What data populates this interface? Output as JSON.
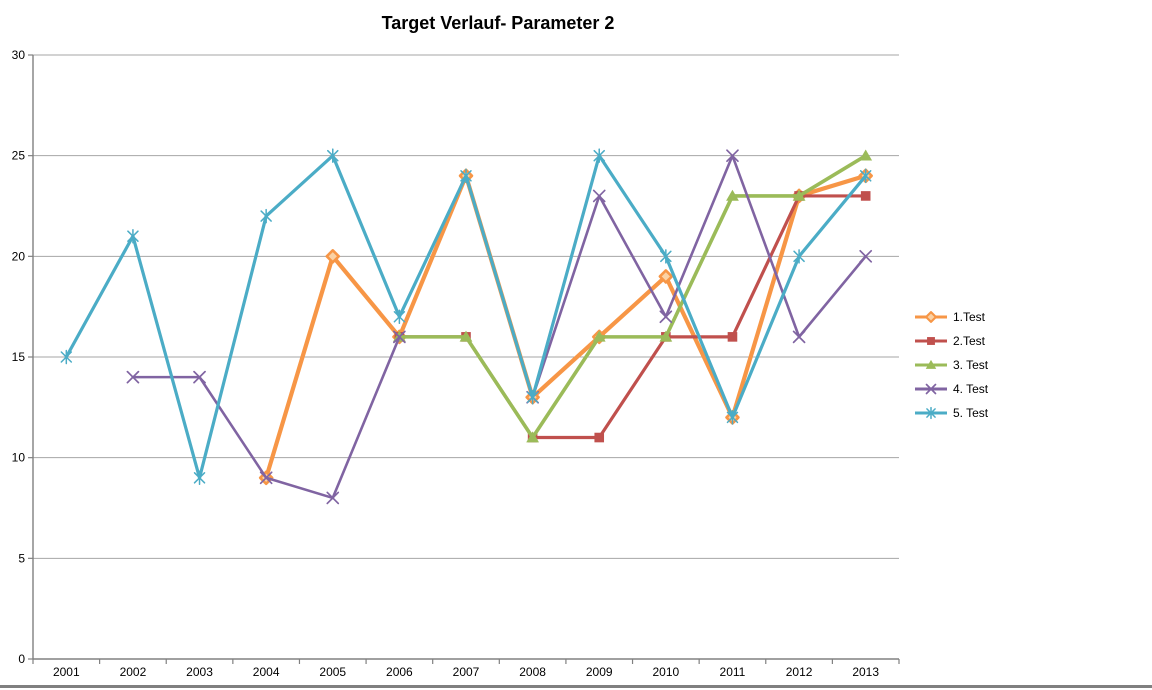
{
  "chart_data": {
    "type": "line",
    "title": "Target Verlauf- Parameter 2",
    "xlabel": "",
    "ylabel": "",
    "categories": [
      "2001",
      "2002",
      "2003",
      "2004",
      "2005",
      "2006",
      "2007",
      "2008",
      "2009",
      "2010",
      "2011",
      "2012",
      "2013"
    ],
    "y_ticks": [
      0,
      5,
      10,
      15,
      20,
      25,
      30
    ],
    "ylim": [
      0,
      30
    ],
    "grid": true,
    "legend_position": "right",
    "series": [
      {
        "name": "1.Test",
        "color": "#F79646",
        "marker": "diamond",
        "values": [
          null,
          null,
          null,
          9,
          20,
          16,
          24,
          13,
          16,
          19,
          12,
          23,
          24
        ]
      },
      {
        "name": "2.Test",
        "color": "#C0504D",
        "marker": "square",
        "values": [
          null,
          null,
          null,
          null,
          null,
          16,
          16,
          11,
          11,
          16,
          16,
          23,
          23
        ]
      },
      {
        "name": "3. Test",
        "color": "#9BBB59",
        "marker": "triangle",
        "values": [
          null,
          null,
          null,
          null,
          null,
          16,
          16,
          11,
          16,
          16,
          23,
          23,
          25
        ]
      },
      {
        "name": "4. Test",
        "color": "#8064A2",
        "marker": "x",
        "values": [
          null,
          14,
          14,
          9,
          8,
          16,
          null,
          13,
          23,
          17,
          25,
          16,
          20
        ]
      },
      {
        "name": "5. Test",
        "color": "#4BACC6",
        "marker": "star",
        "values": [
          15,
          21,
          9,
          22,
          25,
          17,
          24,
          13,
          25,
          20,
          12,
          20,
          24
        ]
      }
    ]
  },
  "colors": {
    "gridline": "#A6A6A6",
    "axis": "#808080",
    "title": "#000000",
    "tick_label": "#000000",
    "background": "#FFFFFF",
    "bottom_edge": "#808080"
  }
}
